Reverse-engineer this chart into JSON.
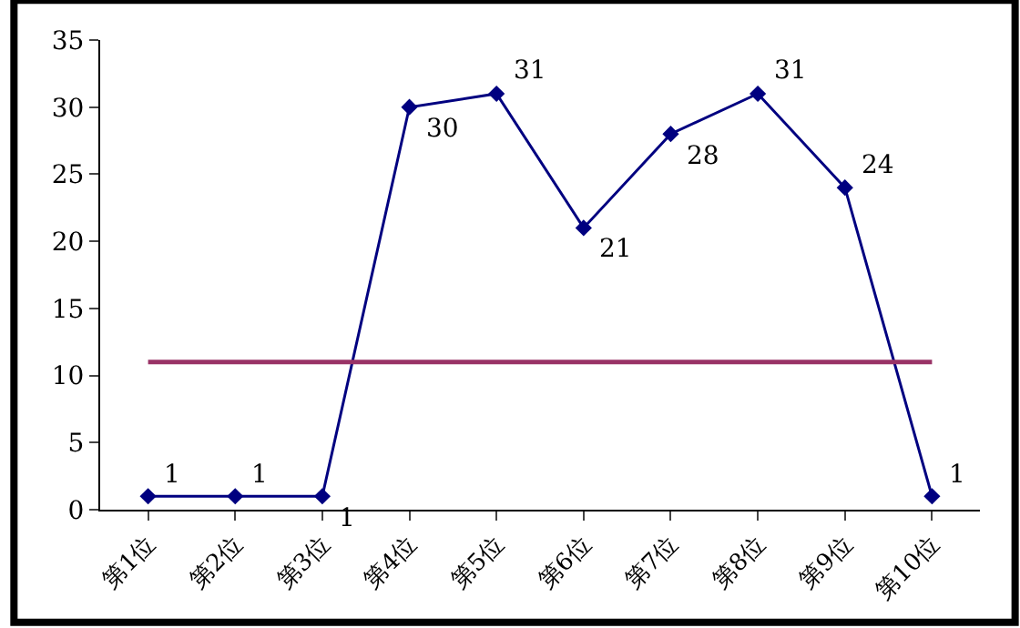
{
  "chart_data": {
    "type": "line",
    "categories": [
      "第1位",
      "第2位",
      "第3位",
      "第4位",
      "第5位",
      "第6位",
      "第7位",
      "第8位",
      "第9位",
      "第10位"
    ],
    "series": [
      {
        "color": "#000080",
        "marker": "diamond",
        "values": [
          1,
          1,
          1,
          30,
          31,
          21,
          28,
          31,
          24,
          1
        ],
        "value_labels": [
          "1",
          "1",
          "1",
          "30",
          "31",
          "21",
          "28",
          "31",
          "24",
          "1"
        ]
      },
      {
        "color": "#993366",
        "marker": "none",
        "values": [
          11,
          11,
          11,
          11,
          11,
          11,
          11,
          11,
          11,
          11
        ]
      }
    ],
    "ylim": [
      0,
      35
    ],
    "yticks": [
      0,
      5,
      10,
      15,
      20,
      25,
      30,
      35
    ],
    "grid": false,
    "line_style": "solid"
  }
}
